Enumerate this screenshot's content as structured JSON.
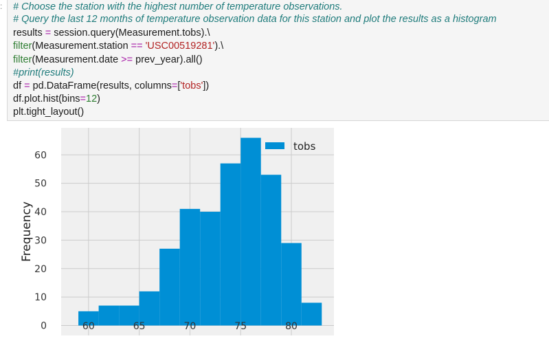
{
  "cell": {
    "prompt": ":",
    "lines": [
      [
        {
          "t": "# Choose the station with the highest number of temperature observations.",
          "c": "com"
        }
      ],
      [
        {
          "t": "# Query the last 12 months of temperature observation data for this station and plot the results as a histogram",
          "c": "com"
        }
      ],
      [
        {
          "t": "results ",
          "c": ""
        },
        {
          "t": "=",
          "c": "op"
        },
        {
          "t": " session.query(Measurement.tobs).\\",
          "c": ""
        }
      ],
      [
        {
          "t": "filter",
          "c": "fn"
        },
        {
          "t": "(Measurement.station ",
          "c": ""
        },
        {
          "t": "==",
          "c": "op"
        },
        {
          "t": " ",
          "c": ""
        },
        {
          "t": "'USC00519281'",
          "c": "str"
        },
        {
          "t": ").\\",
          "c": ""
        }
      ],
      [
        {
          "t": "filter",
          "c": "fn"
        },
        {
          "t": "(Measurement.date ",
          "c": ""
        },
        {
          "t": ">=",
          "c": "op"
        },
        {
          "t": " prev_year).all()",
          "c": ""
        }
      ],
      [
        {
          "t": "#print(results)",
          "c": "com"
        }
      ],
      [
        {
          "t": "df ",
          "c": ""
        },
        {
          "t": "=",
          "c": "op"
        },
        {
          "t": " pd.DataFrame(results, columns",
          "c": ""
        },
        {
          "t": "=",
          "c": "op"
        },
        {
          "t": "[",
          "c": ""
        },
        {
          "t": "'tobs'",
          "c": "str"
        },
        {
          "t": "])",
          "c": ""
        }
      ],
      [
        {
          "t": "df.plot.hist(bins",
          "c": ""
        },
        {
          "t": "=",
          "c": "op"
        },
        {
          "t": "12",
          "c": "num"
        },
        {
          "t": ")",
          "c": ""
        }
      ],
      [
        {
          "t": "plt.tight_layout()",
          "c": ""
        }
      ]
    ]
  },
  "colors": {
    "bar": "#008fd5",
    "plot_bg": "#f0f0f0",
    "grid": "#cbcbcb"
  },
  "chart_data": {
    "type": "bar",
    "title": "",
    "xlabel": "",
    "ylabel": "Frequency",
    "series": [
      {
        "name": "tobs"
      }
    ],
    "bin_edges": [
      59,
      61,
      63,
      65,
      67,
      69,
      71,
      73,
      75,
      77,
      79,
      81,
      83
    ],
    "values": [
      5,
      7,
      7,
      12,
      27,
      41,
      40,
      57,
      66,
      53,
      29,
      8
    ],
    "x_ticks": [
      60,
      65,
      70,
      75,
      80
    ],
    "y_ticks": [
      0,
      10,
      20,
      30,
      40,
      50,
      60
    ],
    "xlim": [
      57.3,
      84.2
    ],
    "ylim": [
      -3.5,
      69.5
    ],
    "grid": true,
    "legend": "top-right"
  }
}
